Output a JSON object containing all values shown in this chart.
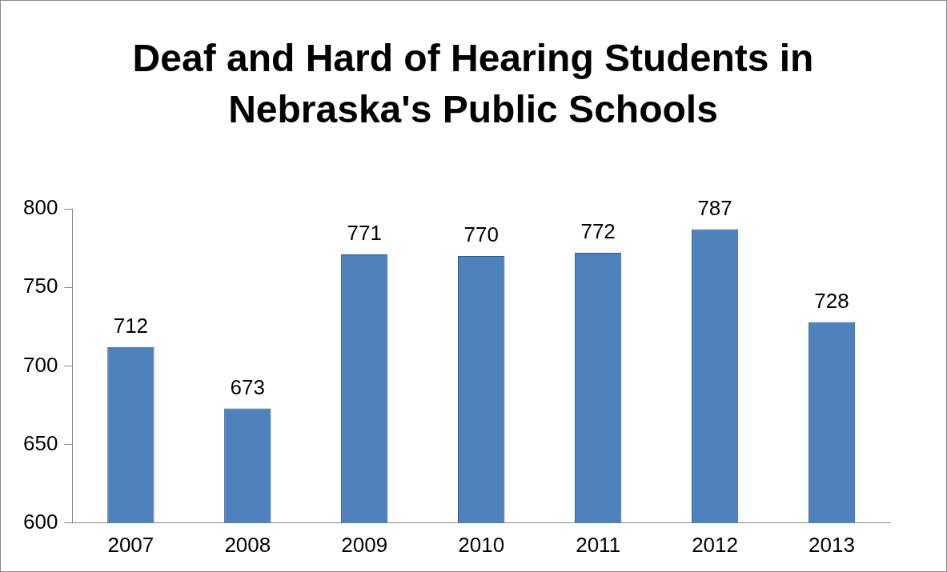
{
  "chart_data": {
    "type": "bar",
    "title": "Deaf and Hard of Hearing Students in Nebraska's Public Schools",
    "categories": [
      "2007",
      "2008",
      "2009",
      "2010",
      "2011",
      "2012",
      "2013"
    ],
    "values": [
      712,
      673,
      771,
      770,
      772,
      787,
      728
    ],
    "color": "#4f81bd",
    "ylim": [
      600,
      800
    ],
    "yticks": [
      600,
      650,
      700,
      750,
      800
    ],
    "grid": false,
    "legend": false,
    "data_labels": true
  }
}
